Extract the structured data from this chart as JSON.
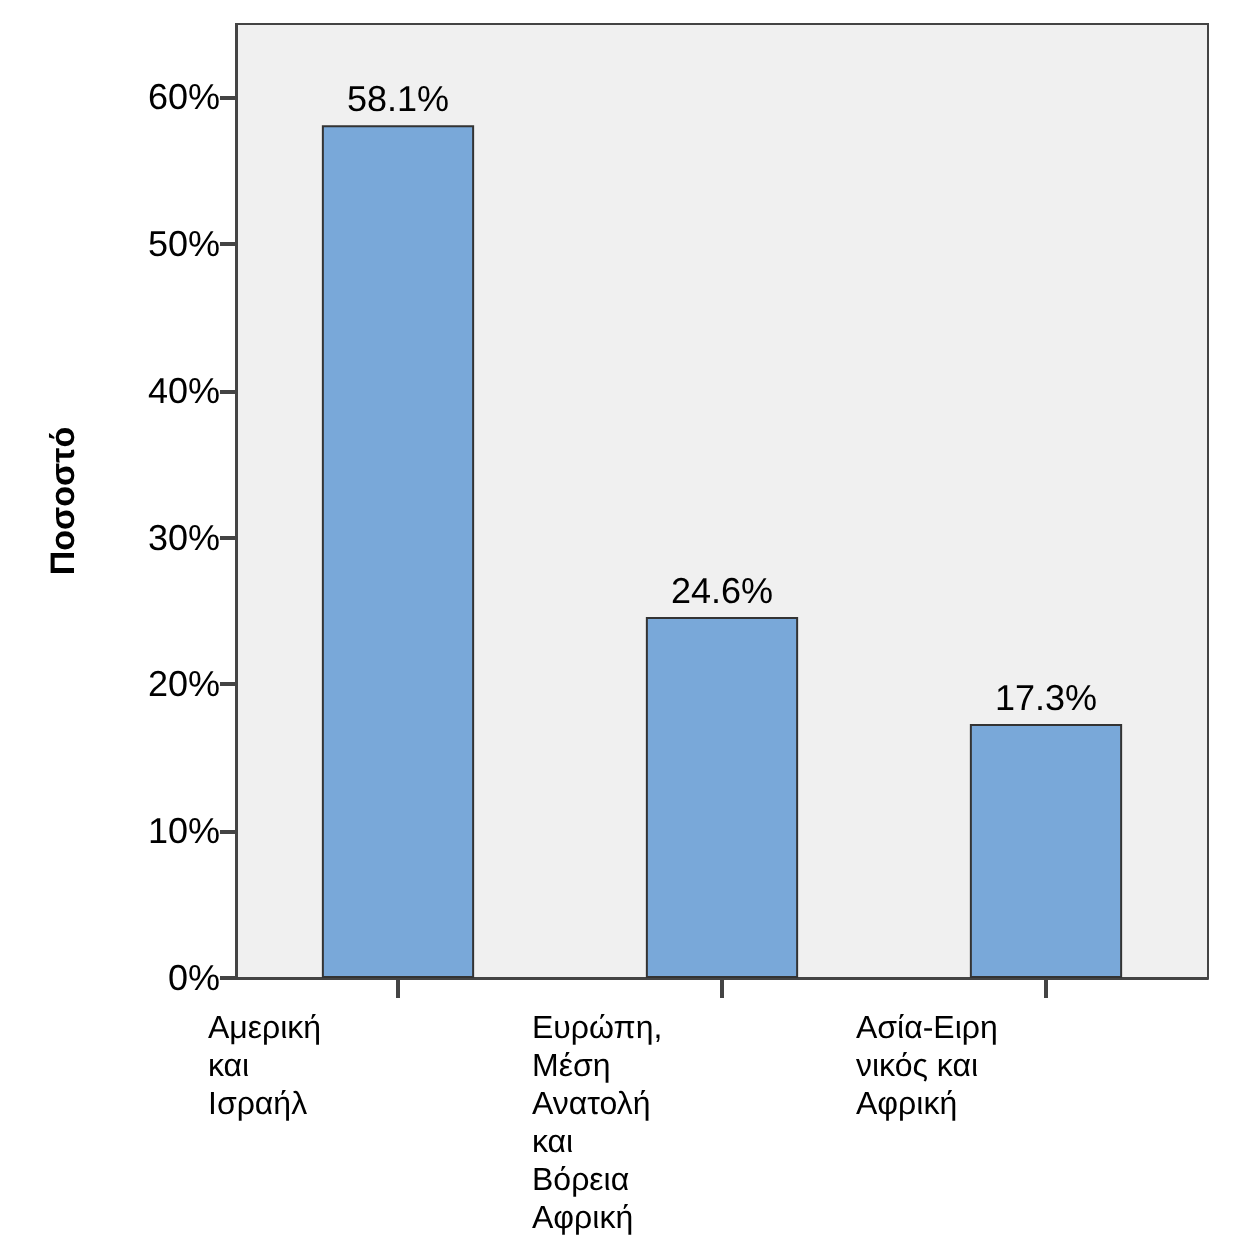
{
  "chart_data": {
    "type": "bar",
    "ylabel": "Ποσοστό",
    "categories": [
      "Αμερική και Ισραήλ",
      "Ευρώπη, Μέση Ανατολή και Βόρεια Αφρική",
      "Ασία-Ειρηνικός και Αφρική"
    ],
    "values": [
      58.1,
      24.6,
      17.3
    ],
    "color": "#79a8d9",
    "value_labels": [
      "58.1%",
      "24.6%",
      "17.3%"
    ],
    "ylim": [
      0,
      65
    ],
    "yticks": [
      {
        "value": 0,
        "label": "0%"
      },
      {
        "value": 10,
        "label": "10%"
      },
      {
        "value": 20,
        "label": "20%"
      },
      {
        "value": 30,
        "label": "30%"
      },
      {
        "value": 40,
        "label": "40%"
      },
      {
        "value": 50,
        "label": "50%"
      },
      {
        "value": 60,
        "label": "60%"
      }
    ],
    "grid": false
  }
}
